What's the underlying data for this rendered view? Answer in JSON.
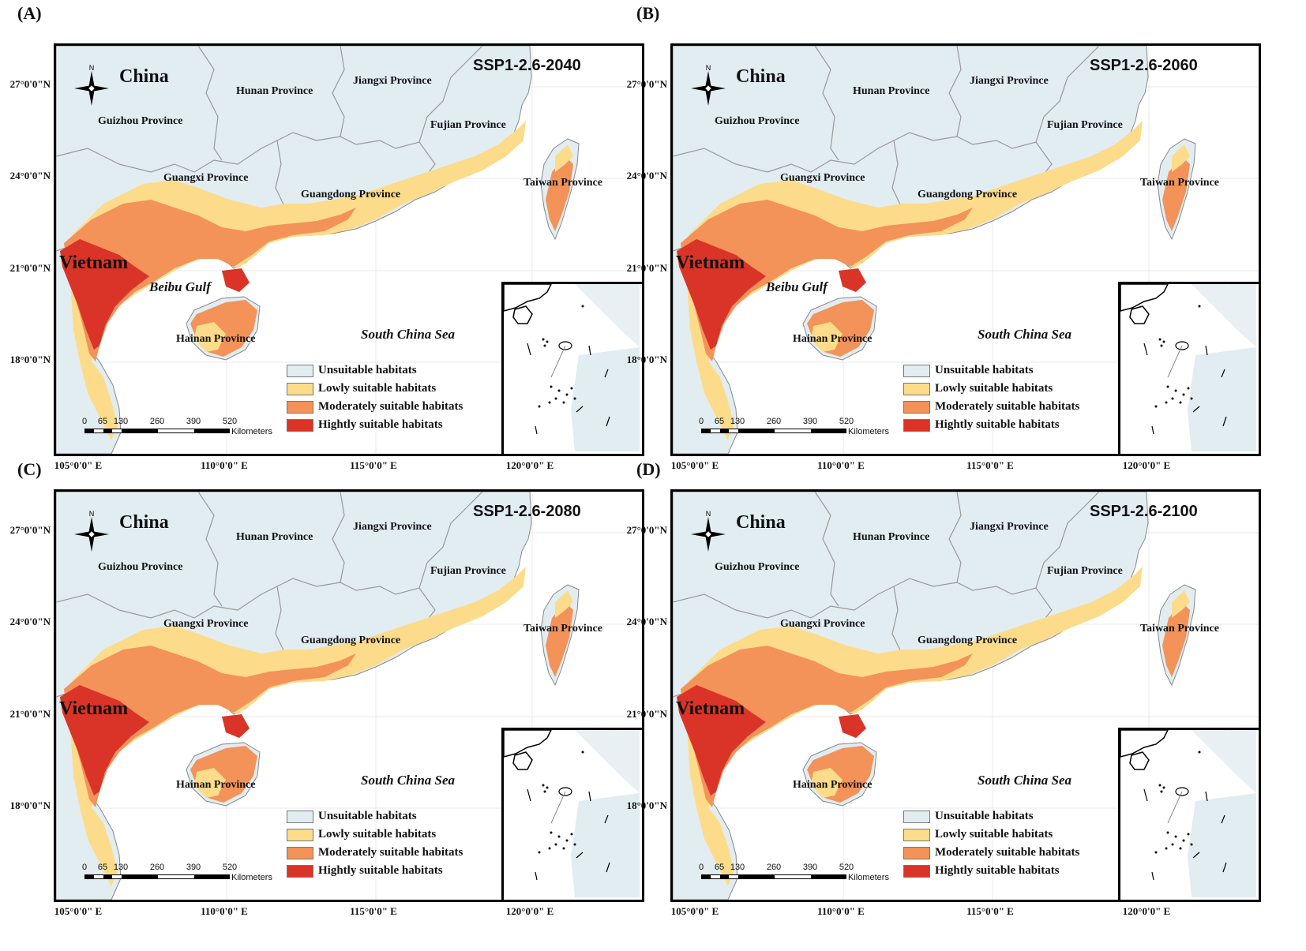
{
  "panels": [
    {
      "letter": "(A)",
      "scenario": "SSP1-2.6-2040",
      "showGulf": true
    },
    {
      "letter": "(B)",
      "scenario": "SSP1-2.6-2060",
      "showGulf": true
    },
    {
      "letter": "(C)",
      "scenario": "SSP1-2.6-2080",
      "showGulf": false
    },
    {
      "letter": "(D)",
      "scenario": "SSP1-2.6-2100",
      "showGulf": false
    }
  ],
  "labels": {
    "china": "China",
    "vietnam": "Vietnam",
    "hunan": "Hunan Province",
    "jiangxi": "Jiangxi Province",
    "guizhou": "Guizhou Province",
    "fujian": "Fujian Province",
    "guangxi": "Guangxi Province",
    "guangdong": "Guangdong Province",
    "taiwan": "Taiwan Province",
    "hainan": "Hainan Province",
    "gulf": "Beibu Gulf",
    "sea": "South China Sea",
    "north": "N"
  },
  "legend": [
    {
      "label": "Unsuitable habitats",
      "color": "#e2edf1"
    },
    {
      "label": "Lowly suitable habitats",
      "color": "#fcdc8a"
    },
    {
      "label": "Moderately suitable habitats",
      "color": "#f39259"
    },
    {
      "label": "Hightly suitable habitats",
      "color": "#d93427"
    }
  ],
  "latitudes": [
    "27°0'0\"N",
    "24°0'0\"N",
    "21°0'0\"N",
    "18°0'0\"N"
  ],
  "longitudes": [
    "105°0'0\" E",
    "110°0'0\" E",
    "115°0'0\" E",
    "120°0'0\" E"
  ],
  "scalebar": {
    "ticks": [
      "0",
      "65",
      "130",
      "260",
      "390",
      "520"
    ],
    "unit": "Kilometers"
  }
}
